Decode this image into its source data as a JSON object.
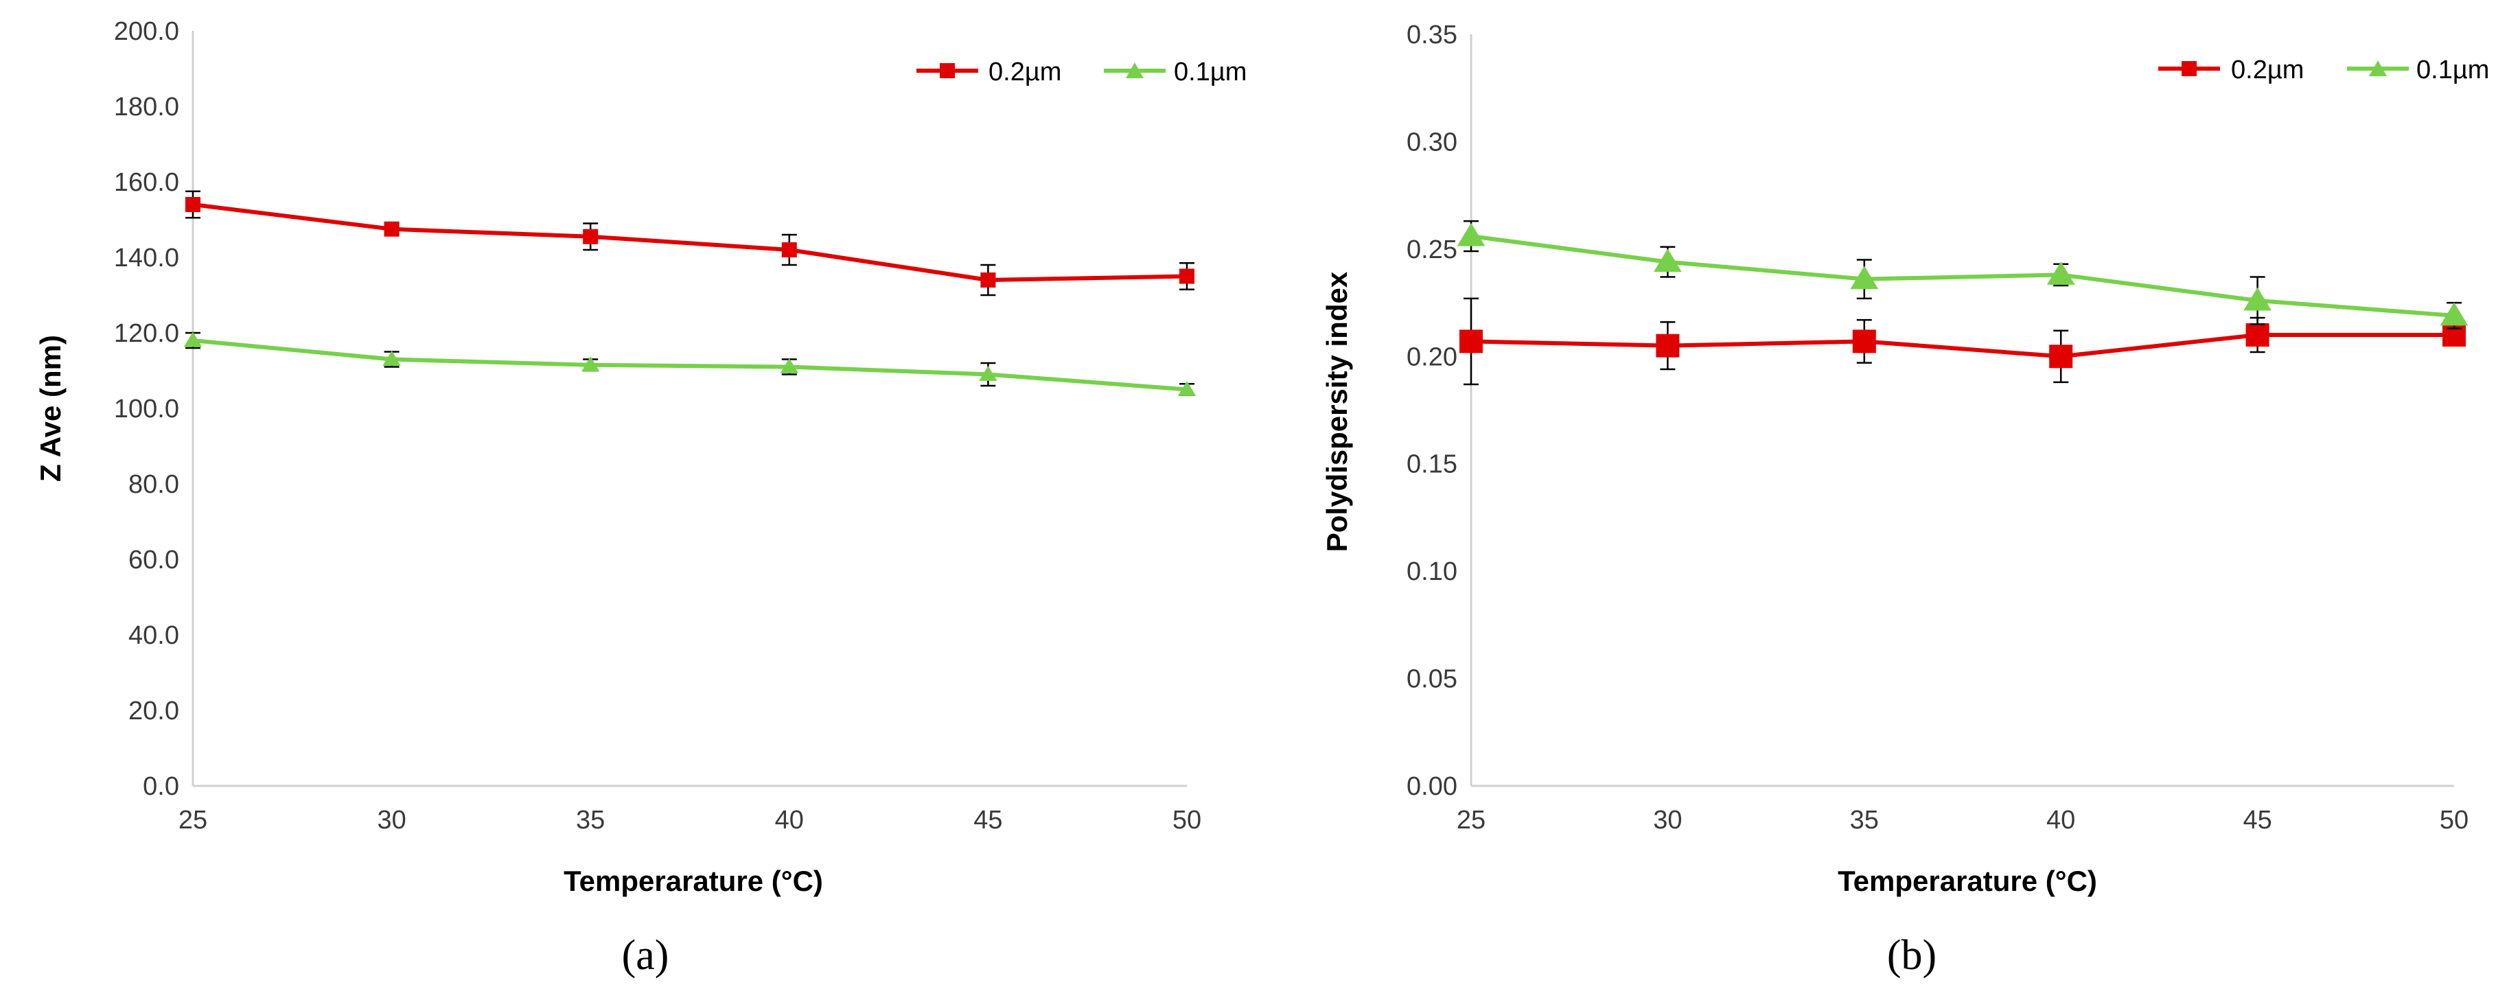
{
  "colors": {
    "series_0_2um": "#e00000",
    "series_0_1um": "#77d04a",
    "axis": "#d0d0d0",
    "error_bar": "#000000"
  },
  "chart_data": [
    {
      "type": "line",
      "caption": "(a)",
      "xlabel": "Temperarature (°C)",
      "ylabel": "Z Ave (nm)",
      "x": [
        25,
        30,
        35,
        40,
        45,
        50
      ],
      "x_tick_labels": [
        "25",
        "30",
        "35",
        "40",
        "45",
        "50"
      ],
      "ylim": [
        0,
        200
      ],
      "y_ticks": [
        0,
        20,
        40,
        60,
        80,
        100,
        120,
        140,
        160,
        180,
        200
      ],
      "y_tick_labels": [
        "0.0",
        "20.0",
        "40.0",
        "60.0",
        "80.0",
        "100.0",
        "120.0",
        "140.0",
        "160.0",
        "180.0",
        "200.0"
      ],
      "grid": false,
      "legend_position": "top-right",
      "series": [
        {
          "name": "0.2µm",
          "marker": "square",
          "color": "#e00000",
          "values": [
            154.0,
            147.5,
            145.5,
            142.0,
            134.0,
            135.0
          ],
          "errors": [
            3.5,
            1.5,
            3.5,
            4.0,
            4.0,
            3.5
          ]
        },
        {
          "name": "0.1µm",
          "marker": "triangle",
          "color": "#77d04a",
          "values": [
            118.0,
            113.0,
            111.5,
            111.0,
            109.0,
            105.0
          ],
          "errors": [
            2.0,
            2.0,
            1.5,
            2.0,
            3.0,
            1.5
          ]
        }
      ]
    },
    {
      "type": "line",
      "caption": "(b)",
      "xlabel": "Temperarature (°C)",
      "ylabel": "Polydispersity index",
      "x": [
        25,
        30,
        35,
        40,
        45,
        50
      ],
      "x_tick_labels": [
        "25",
        "30",
        "35",
        "40",
        "45",
        "50"
      ],
      "ylim": [
        0,
        0.35
      ],
      "y_ticks": [
        0,
        0.05,
        0.1,
        0.15,
        0.2,
        0.25,
        0.3,
        0.35
      ],
      "y_tick_labels": [
        "0.00",
        "0.05",
        "0.10",
        "0.15",
        "0.20",
        "0.25",
        "0.30",
        "0.35"
      ],
      "grid": false,
      "legend_position": "top-right",
      "series": [
        {
          "name": "0.2µm",
          "marker": "square",
          "color": "#e00000",
          "values": [
            0.207,
            0.205,
            0.207,
            0.2,
            0.21,
            0.21
          ],
          "errors": [
            0.02,
            0.011,
            0.01,
            0.012,
            0.008,
            0.003
          ]
        },
        {
          "name": "0.1µm",
          "marker": "triangle",
          "color": "#77d04a",
          "values": [
            0.256,
            0.244,
            0.236,
            0.238,
            0.226,
            0.219
          ],
          "errors": [
            0.007,
            0.007,
            0.009,
            0.005,
            0.011,
            0.006
          ]
        }
      ]
    }
  ]
}
